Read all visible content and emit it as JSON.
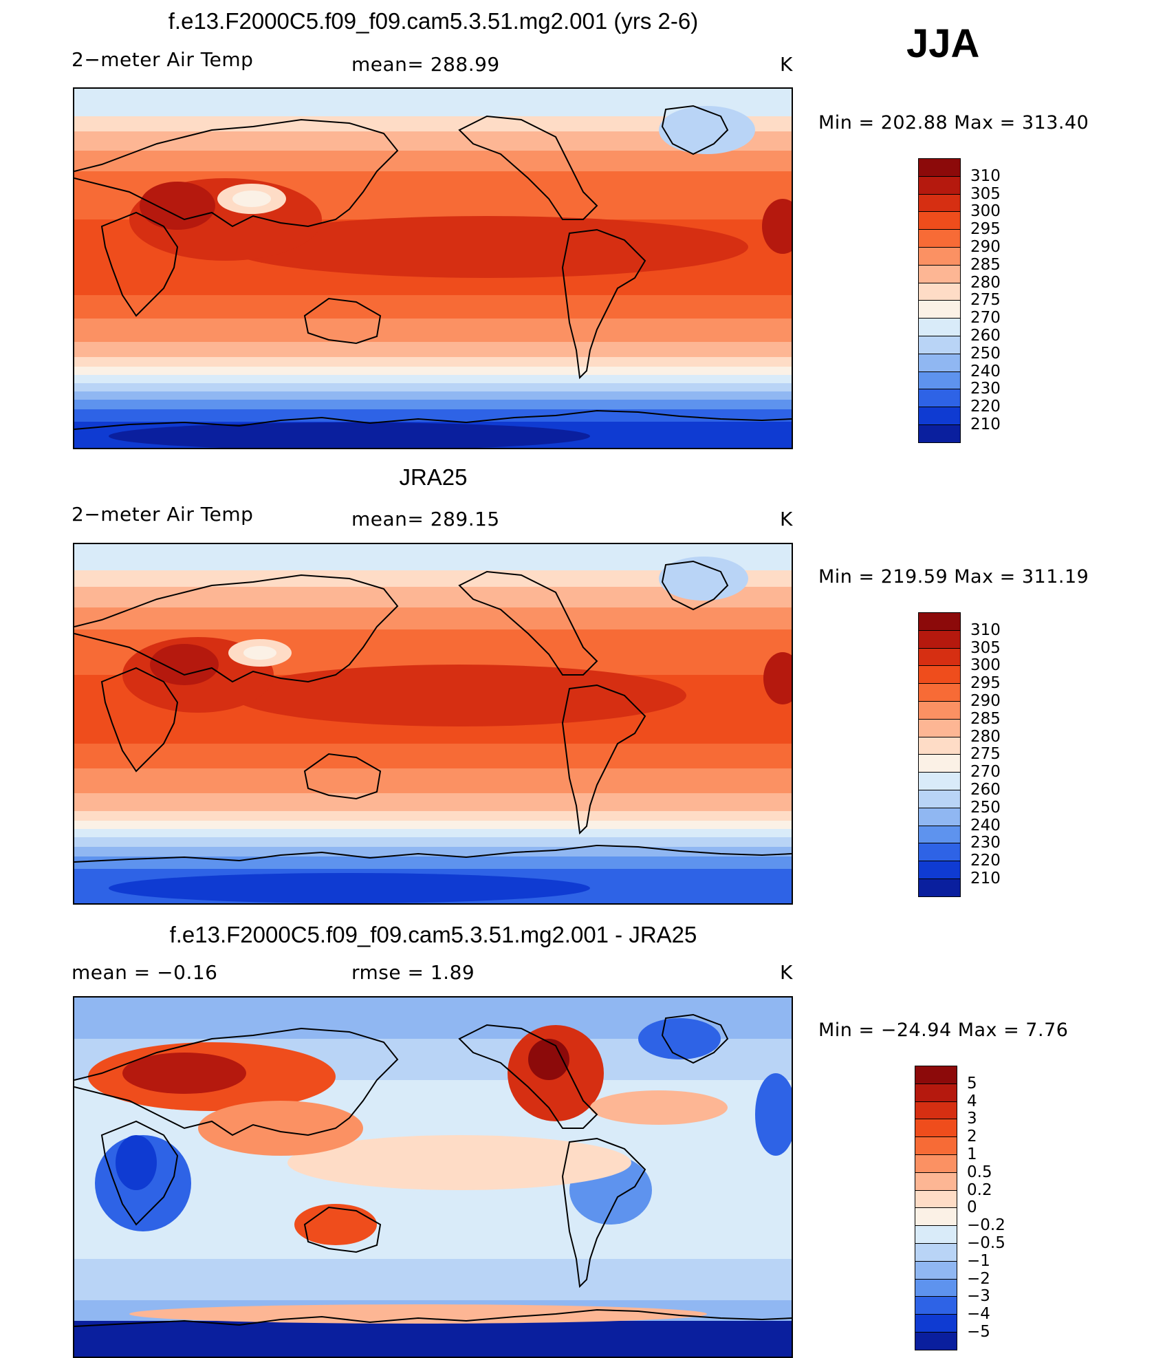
{
  "season": "JJA",
  "units": "K",
  "panels": [
    {
      "title": "f.e13.F2000C5.f09_f09.cam5.3.51.mg2.001 (yrs 2-6)",
      "left_label": "2−meter Air Temp",
      "center_label": "mean=  288.99",
      "right_label": "K",
      "minmax": "Min  =  202.88  Max  =  313.40"
    },
    {
      "title": "JRA25",
      "left_label": "2−meter Air Temp",
      "center_label": "mean=  289.15",
      "right_label": "K",
      "minmax": "Min  =  219.59  Max  =  311.19"
    },
    {
      "title": "f.e13.F2000C5.f09_f09.cam5.3.51.mg2.001 - JRA25",
      "left_label": "mean  =    −0.16",
      "center_label": "rmse  =     1.89",
      "right_label": "K",
      "minmax": "Min  =  −24.94  Max  =      7.76"
    }
  ],
  "chart_data": [
    {
      "type": "heatmap",
      "title": "f.e13.F2000C5.f09_f09.cam5.3.51.mg2.001 (yrs 2-6)",
      "variable": "2-meter Air Temp",
      "mean": 288.99,
      "min": 202.88,
      "max": 313.4,
      "units": "K",
      "colorbar_labels": [
        "310",
        "305",
        "300",
        "295",
        "290",
        "285",
        "280",
        "275",
        "270",
        "260",
        "250",
        "240",
        "230",
        "220",
        "210"
      ],
      "colorbar_colors": [
        "#8c0a0a",
        "#b5190e",
        "#d62f12",
        "#ef4d1c",
        "#f76b36",
        "#fb9163",
        "#fdb694",
        "#fedcc6",
        "#fbf1e6",
        "#d9ebf9",
        "#b9d4f6",
        "#90b7f2",
        "#5e93ee",
        "#2e63e6",
        "#0f3bd2",
        "#0a1f9e"
      ]
    },
    {
      "type": "heatmap",
      "title": "JRA25",
      "variable": "2-meter Air Temp",
      "mean": 289.15,
      "min": 219.59,
      "max": 311.19,
      "units": "K",
      "colorbar_labels": [
        "310",
        "305",
        "300",
        "295",
        "290",
        "285",
        "280",
        "275",
        "270",
        "260",
        "250",
        "240",
        "230",
        "220",
        "210"
      ],
      "colorbar_colors": [
        "#8c0a0a",
        "#b5190e",
        "#d62f12",
        "#ef4d1c",
        "#f76b36",
        "#fb9163",
        "#fdb694",
        "#fedcc6",
        "#fbf1e6",
        "#d9ebf9",
        "#b9d4f6",
        "#90b7f2",
        "#5e93ee",
        "#2e63e6",
        "#0f3bd2",
        "#0a1f9e"
      ]
    },
    {
      "type": "heatmap",
      "title": "f.e13.F2000C5.f09_f09.cam5.3.51.mg2.001 - JRA25",
      "variable": "2-meter Air Temp difference",
      "mean": -0.16,
      "rmse": 1.89,
      "min": -24.94,
      "max": 7.76,
      "units": "K",
      "colorbar_labels": [
        "5",
        "4",
        "3",
        "2",
        "1",
        "0.5",
        "0.2",
        "0",
        "−0.2",
        "−0.5",
        "−1",
        "−2",
        "−3",
        "−4",
        "−5"
      ],
      "colorbar_colors": [
        "#8c0a0a",
        "#b5190e",
        "#d62f12",
        "#ef4d1c",
        "#f76b36",
        "#fb9163",
        "#fdb694",
        "#fedcc6",
        "#fbf1e6",
        "#d9ebf9",
        "#b9d4f6",
        "#90b7f2",
        "#5e93ee",
        "#2e63e6",
        "#0f3bd2",
        "#0a1f9e"
      ]
    }
  ]
}
